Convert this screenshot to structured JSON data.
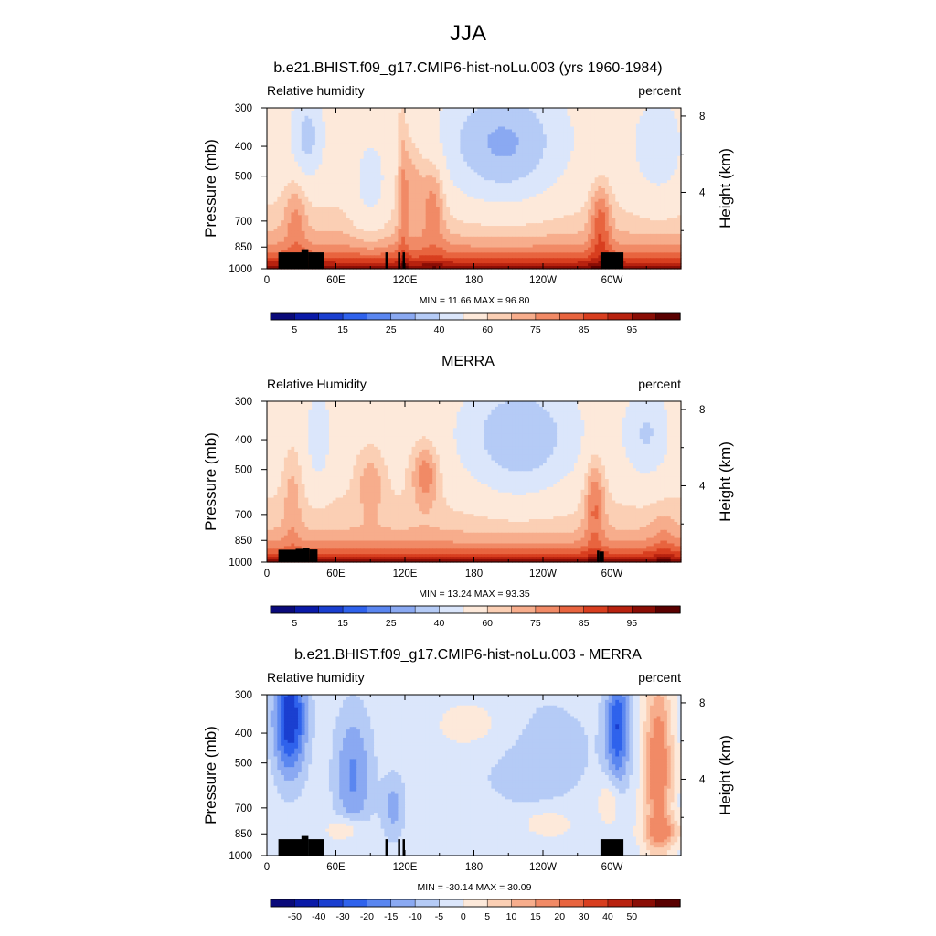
{
  "figure": {
    "title": "JJA"
  },
  "colors": {
    "rh_levels": [
      "#0a0a7a",
      "#0a1aa8",
      "#1a3fd0",
      "#2f62ec",
      "#5a86f0",
      "#8aa9f2",
      "#b5cbf6",
      "#dbe6fb",
      "#fde9da",
      "#fbcfb4",
      "#f7ad8c",
      "#f18a66",
      "#e8643f",
      "#d83e1f",
      "#b8220f",
      "#8a0d05",
      "#5a0000"
    ],
    "diff_levels": [
      "#0a0a7a",
      "#0a1aa8",
      "#1a3fd0",
      "#2f62ec",
      "#5a86f0",
      "#8aa9f2",
      "#b5cbf6",
      "#dbe6fb",
      "#fde9da",
      "#fbcfb4",
      "#f7ad8c",
      "#f18a66",
      "#e8643f",
      "#d83e1f",
      "#b8220f",
      "#8a0d05",
      "#5a0000"
    ],
    "terrain": "#000000"
  },
  "chart_data": [
    {
      "type": "heatmap",
      "title": "b.e21.BHIST.f09_g17.CMIP6-hist-noLu.003 (yrs 1960-1984)",
      "left_label": "Relative humidity",
      "right_label": "percent",
      "ylabel": "Pressure (mb)",
      "y2label": "Height (km)",
      "xticks": [
        "0",
        "60E",
        "120E",
        "180",
        "120W",
        "60W"
      ],
      "xtick_values": [
        0,
        60,
        120,
        180,
        240,
        300
      ],
      "xlim": [
        0,
        360
      ],
      "yticks": [
        "300",
        "400",
        "500",
        "700",
        "850",
        "1000"
      ],
      "ytick_values": [
        300,
        400,
        500,
        700,
        850,
        1000
      ],
      "ylim": [
        1000,
        300
      ],
      "y2ticks": [
        "8",
        "4"
      ],
      "y2tick_values": [
        8,
        4
      ],
      "stats": "MIN =  11.66  MAX =  96.80",
      "colorbar_labels": [
        "5",
        "15",
        "25",
        "40",
        "60",
        "75",
        "85",
        "95"
      ],
      "field": "model"
    },
    {
      "type": "heatmap",
      "title": "MERRA",
      "left_label": "Relative Humidity",
      "right_label": "percent",
      "ylabel": "Pressure (mb)",
      "y2label": "Height (km)",
      "xticks": [
        "0",
        "60E",
        "120E",
        "180",
        "120W",
        "60W"
      ],
      "xtick_values": [
        0,
        60,
        120,
        180,
        240,
        300
      ],
      "xlim": [
        0,
        360
      ],
      "yticks": [
        "300",
        "400",
        "500",
        "700",
        "850",
        "1000"
      ],
      "ytick_values": [
        300,
        400,
        500,
        700,
        850,
        1000
      ],
      "ylim": [
        1000,
        300
      ],
      "y2ticks": [
        "8",
        "4"
      ],
      "y2tick_values": [
        8,
        4
      ],
      "stats": "MIN =  13.24  MAX =  93.35",
      "colorbar_labels": [
        "5",
        "15",
        "25",
        "40",
        "60",
        "75",
        "85",
        "95"
      ],
      "field": "obs"
    },
    {
      "type": "heatmap",
      "title": "b.e21.BHIST.f09_g17.CMIP6-hist-noLu.003 - MERRA",
      "left_label": "Relative humidity",
      "right_label": "percent",
      "ylabel": "Pressure (mb)",
      "y2label": "Height (km)",
      "xticks": [
        "0",
        "60E",
        "120E",
        "180",
        "120W",
        "60W"
      ],
      "xtick_values": [
        0,
        60,
        120,
        180,
        240,
        300
      ],
      "xlim": [
        0,
        360
      ],
      "yticks": [
        "300",
        "400",
        "500",
        "700",
        "850",
        "1000"
      ],
      "ytick_values": [
        300,
        400,
        500,
        700,
        850,
        1000
      ],
      "ylim": [
        1000,
        300
      ],
      "y2ticks": [
        "8",
        "4"
      ],
      "y2tick_values": [
        8,
        4
      ],
      "stats": "MIN = -30.14  MAX =  30.09",
      "colorbar_labels": [
        "-50",
        "-40",
        "-30",
        "-20",
        "-15",
        "-10",
        "-5",
        "0",
        "5",
        "10",
        "15",
        "20",
        "30",
        "40",
        "50"
      ],
      "field": "diff"
    }
  ]
}
